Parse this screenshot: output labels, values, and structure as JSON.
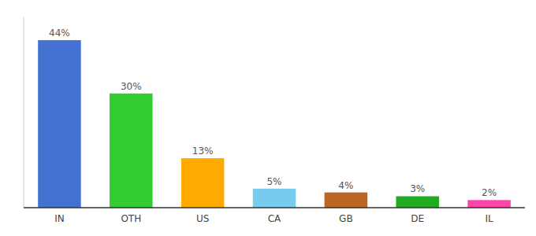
{
  "chart_data": {
    "type": "bar",
    "categories": [
      "IN",
      "OTH",
      "US",
      "CA",
      "GB",
      "DE",
      "IL"
    ],
    "values": [
      44,
      30,
      13,
      5,
      4,
      3,
      2
    ],
    "value_labels": [
      "44%",
      "30%",
      "13%",
      "5%",
      "4%",
      "3%",
      "2%"
    ],
    "colors": [
      "#4472d3",
      "#33cc33",
      "#ffaa00",
      "#77ccee",
      "#bb6622",
      "#22aa22",
      "#ff44aa"
    ],
    "ylim": [
      0,
      50
    ],
    "data_labels": true,
    "tick_labels": "x",
    "grid": false
  }
}
